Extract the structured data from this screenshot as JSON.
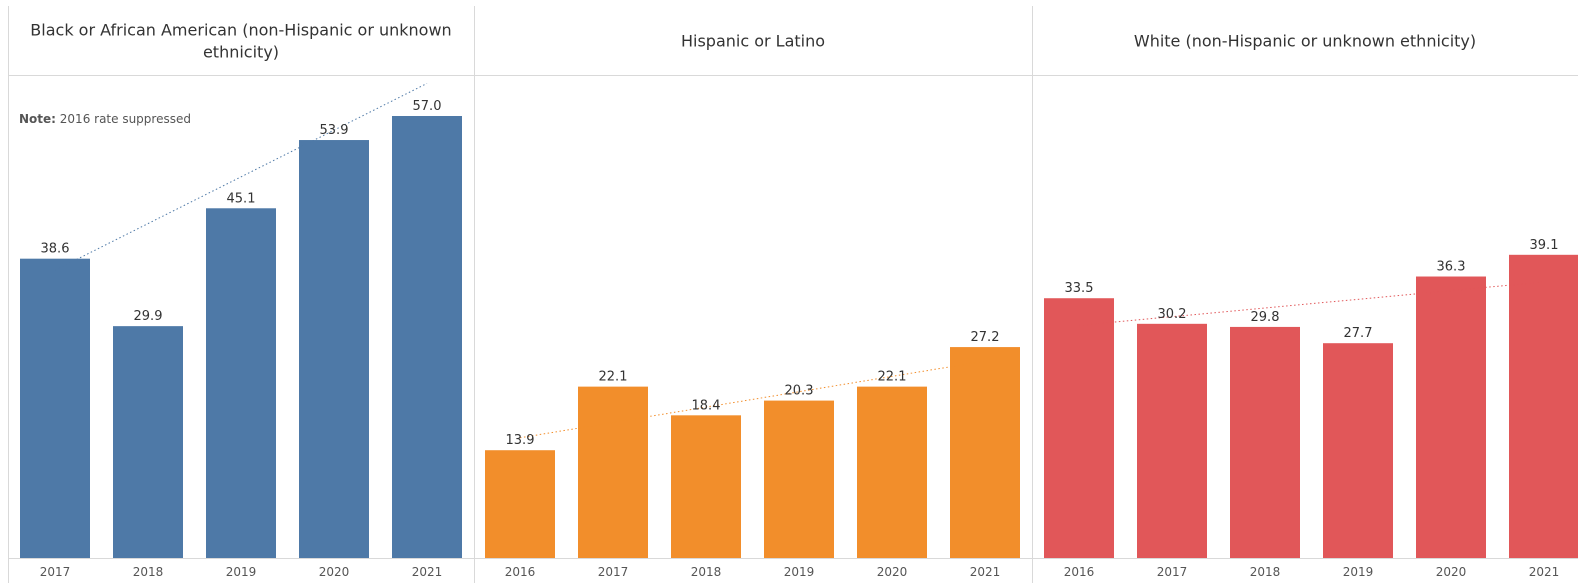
{
  "chart_data": [
    {
      "type": "bar",
      "title": "Black or African American (non-Hispanic or unknown ethnicity)",
      "title_lines": [
        "Black or African American (non-Hispanic or unknown",
        "ethnicity)"
      ],
      "note_label": "Note:",
      "note_text": " 2016 rate suppressed",
      "color": "#4e79a7",
      "trend_color": "#4e79a7",
      "categories": [
        "2017",
        "2018",
        "2019",
        "2020",
        "2021"
      ],
      "values": [
        38.6,
        29.9,
        45.1,
        53.9,
        57.0
      ],
      "value_labels": [
        "38.6",
        "29.9",
        "45.1",
        "53.9",
        "57.0"
      ],
      "trend": [
        37.1,
        61.2
      ],
      "ylim": [
        0,
        63
      ]
    },
    {
      "type": "bar",
      "title": "Hispanic or Latino",
      "title_lines": [
        "Hispanic or Latino"
      ],
      "color": "#f28e2b",
      "trend_color": "#f28e2b",
      "categories": [
        "2016",
        "2017",
        "2018",
        "2019",
        "2020",
        "2021"
      ],
      "values": [
        13.9,
        22.1,
        18.4,
        20.3,
        22.1,
        27.2
      ],
      "value_labels": [
        "13.9",
        "22.1",
        "18.4",
        "20.3",
        "22.1",
        "27.2"
      ],
      "trend": [
        15.5,
        25.4
      ],
      "ylim": [
        0,
        63
      ]
    },
    {
      "type": "bar",
      "title": "White (non-Hispanic or unknown ethnicity)",
      "title_lines": [
        "White (non-Hispanic or unknown ethnicity)"
      ],
      "color": "#e15759",
      "trend_color": "#e15759",
      "categories": [
        "2016",
        "2017",
        "2018",
        "2019",
        "2020",
        "2021"
      ],
      "values": [
        33.5,
        30.2,
        29.8,
        27.7,
        36.3,
        39.1
      ],
      "value_labels": [
        "33.5",
        "30.2",
        "29.8",
        "27.7",
        "36.3",
        "39.1"
      ],
      "trend": [
        30.0,
        35.6
      ],
      "ylim": [
        0,
        63
      ]
    }
  ]
}
